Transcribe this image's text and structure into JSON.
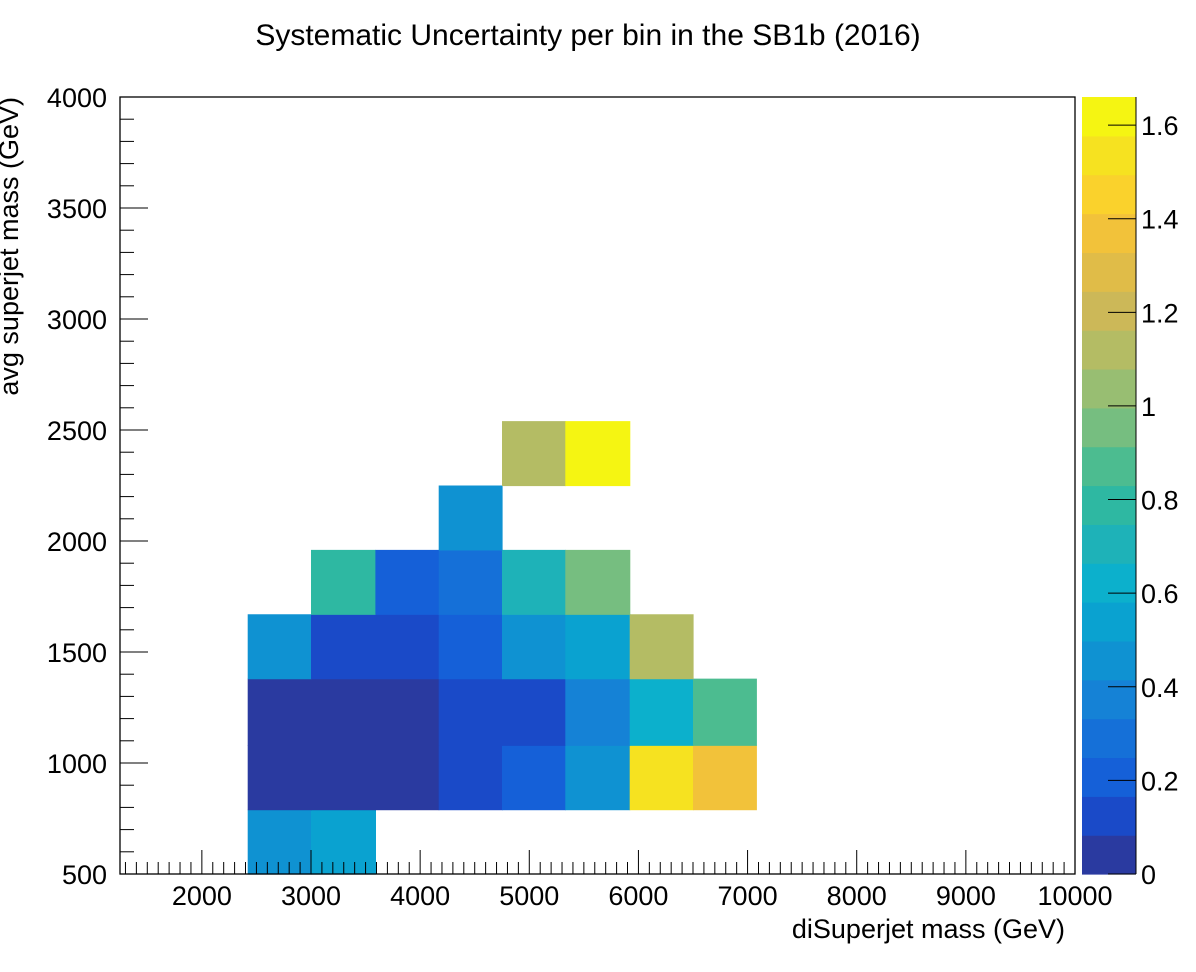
{
  "chart_data": {
    "type": "heatmap",
    "title": "Systematic Uncertainty per bin in the SB1b (2016)",
    "xlabel": "diSuperjet mass (GeV)",
    "ylabel": "avg superjet mass (GeV)",
    "xlim": [
      1250,
      10000
    ],
    "ylim": [
      500,
      4000
    ],
    "x_ticks": [
      "2000",
      "3000",
      "4000",
      "5000",
      "6000",
      "7000",
      "8000",
      "9000",
      "10000"
    ],
    "y_ticks": [
      "500",
      "1000",
      "1500",
      "2000",
      "2500",
      "3000",
      "3500",
      "4000"
    ],
    "colorbar": {
      "range": [
        0,
        1.66
      ],
      "ticks": [
        "0",
        "0.2",
        "0.4",
        "0.6",
        "0.8",
        "1",
        "1.2",
        "1.4",
        "1.6"
      ],
      "palette": [
        "#2a3aa0",
        "#1a4ac8",
        "#1560d8",
        "#1570d8",
        "#1582d6",
        "#0f92d2",
        "#0aa2d0",
        "#0cb0cc",
        "#1eb2b8",
        "#2eb8a2",
        "#4cbc90",
        "#76be80",
        "#98be72",
        "#b4bc64",
        "#ccb858",
        "#e0bc48",
        "#f2c23a",
        "#fad22c",
        "#f6e220",
        "#f5f512"
      ]
    },
    "cells": [
      {
        "x": [
          2420,
          3000
        ],
        "y": [
          500,
          790
        ],
        "value": 0.47
      },
      {
        "x": [
          3000,
          3590
        ],
        "y": [
          500,
          790
        ],
        "value": 0.58
      },
      {
        "x": [
          2420,
          3000
        ],
        "y": [
          790,
          1080
        ],
        "value": 0.02
      },
      {
        "x": [
          3000,
          3590
        ],
        "y": [
          790,
          1080
        ],
        "value": 0.02
      },
      {
        "x": [
          3590,
          4170
        ],
        "y": [
          790,
          1080
        ],
        "value": 0.02
      },
      {
        "x": [
          4170,
          4750
        ],
        "y": [
          790,
          1080
        ],
        "value": 0.13
      },
      {
        "x": [
          4750,
          5330
        ],
        "y": [
          790,
          1080
        ],
        "value": 0.22
      },
      {
        "x": [
          5330,
          5920
        ],
        "y": [
          790,
          1080
        ],
        "value": 0.47
      },
      {
        "x": [
          5920,
          6500
        ],
        "y": [
          790,
          1080
        ],
        "value": 1.57
      },
      {
        "x": [
          6500,
          7080
        ],
        "y": [
          790,
          1080
        ],
        "value": 1.4
      },
      {
        "x": [
          2420,
          3000
        ],
        "y": [
          1080,
          1380
        ],
        "value": 0.02
      },
      {
        "x": [
          3000,
          3590
        ],
        "y": [
          1080,
          1380
        ],
        "value": 0.02
      },
      {
        "x": [
          3590,
          4170
        ],
        "y": [
          1080,
          1380
        ],
        "value": 0.02
      },
      {
        "x": [
          4170,
          4750
        ],
        "y": [
          1080,
          1380
        ],
        "value": 0.13
      },
      {
        "x": [
          4750,
          5330
        ],
        "y": [
          1080,
          1380
        ],
        "value": 0.13
      },
      {
        "x": [
          5330,
          5920
        ],
        "y": [
          1080,
          1380
        ],
        "value": 0.37
      },
      {
        "x": [
          5920,
          6500
        ],
        "y": [
          1080,
          1380
        ],
        "value": 0.64
      },
      {
        "x": [
          6500,
          7080
        ],
        "y": [
          1080,
          1380
        ],
        "value": 0.88
      },
      {
        "x": [
          2420,
          3000
        ],
        "y": [
          1380,
          1670
        ],
        "value": 0.47
      },
      {
        "x": [
          3000,
          3590
        ],
        "y": [
          1380,
          1670
        ],
        "value": 0.13
      },
      {
        "x": [
          3590,
          4170
        ],
        "y": [
          1380,
          1670
        ],
        "value": 0.13
      },
      {
        "x": [
          4170,
          4750
        ],
        "y": [
          1380,
          1670
        ],
        "value": 0.22
      },
      {
        "x": [
          4750,
          5330
        ],
        "y": [
          1380,
          1670
        ],
        "value": 0.47
      },
      {
        "x": [
          5330,
          5920
        ],
        "y": [
          1380,
          1670
        ],
        "value": 0.56
      },
      {
        "x": [
          5920,
          6500
        ],
        "y": [
          1380,
          1670
        ],
        "value": 1.1
      },
      {
        "x": [
          3000,
          3590
        ],
        "y": [
          1670,
          1960
        ],
        "value": 0.8
      },
      {
        "x": [
          3590,
          4170
        ],
        "y": [
          1670,
          1960
        ],
        "value": 0.22
      },
      {
        "x": [
          4170,
          4750
        ],
        "y": [
          1670,
          1960
        ],
        "value": 0.31
      },
      {
        "x": [
          4750,
          5330
        ],
        "y": [
          1670,
          1960
        ],
        "value": 0.72
      },
      {
        "x": [
          5330,
          5920
        ],
        "y": [
          1670,
          1960
        ],
        "value": 0.97
      },
      {
        "x": [
          4170,
          4750
        ],
        "y": [
          1960,
          2250
        ],
        "value": 0.47
      },
      {
        "x": [
          4750,
          5330
        ],
        "y": [
          2250,
          2540
        ],
        "value": 1.1
      },
      {
        "x": [
          5330,
          5920
        ],
        "y": [
          2250,
          2540
        ],
        "value": 1.66
      }
    ]
  }
}
